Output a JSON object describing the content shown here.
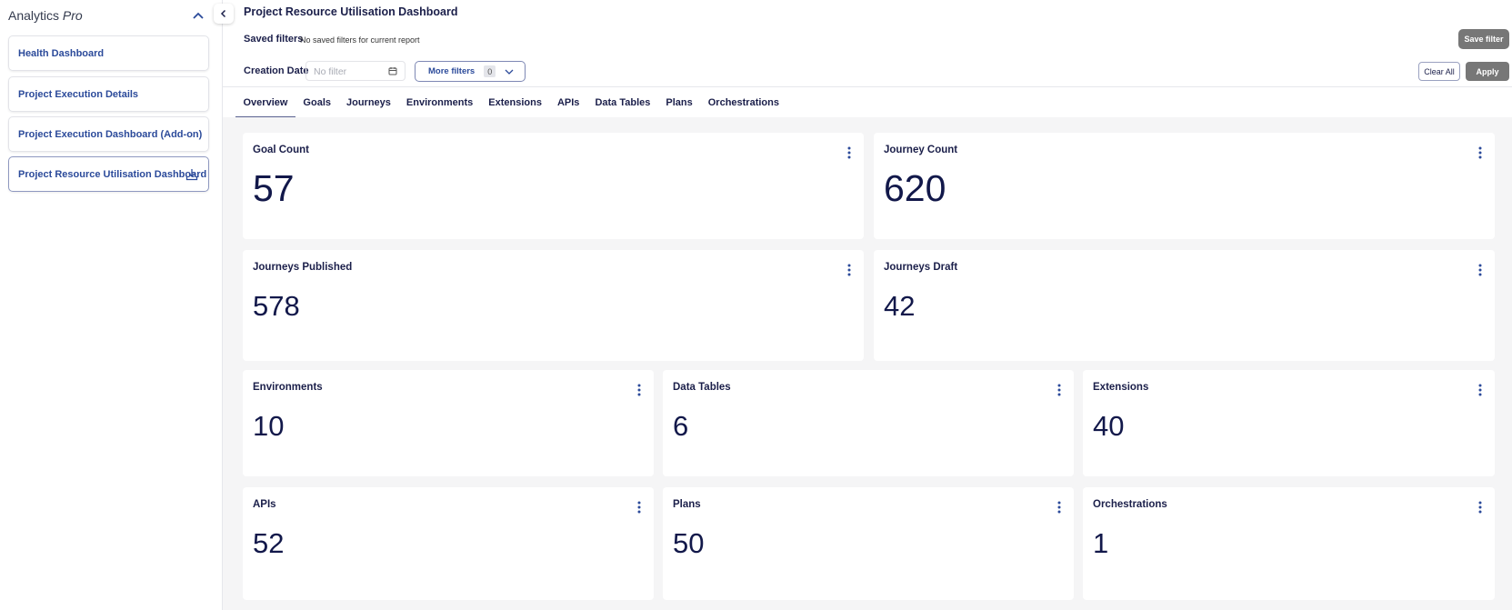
{
  "sidebar": {
    "brand": "Analytics",
    "brand_suffix": "Pro",
    "items": [
      {
        "label": "Health Dashboard"
      },
      {
        "label": "Project Execution Details"
      },
      {
        "label": "Project Execution Dashboard (Add-on)"
      },
      {
        "label": "Project Resource Utilisation Dashboard",
        "active": true
      }
    ]
  },
  "header": {
    "title": "Project Resource Utilisation Dashboard",
    "saved_filters_label": "Saved filters",
    "saved_filters_value": "No saved filters for current report",
    "save_filter_button": "Save filter",
    "creation_date_label": "Creation Date",
    "creation_date_placeholder": "No filter",
    "more_filters_label": "More filters",
    "more_filters_count": "0",
    "clear_all_button": "Clear All",
    "apply_button": "Apply"
  },
  "tabs": [
    "Overview",
    "Goals",
    "Journeys",
    "Environments",
    "Extensions",
    "APIs",
    "Data Tables",
    "Plans",
    "Orchestrations"
  ],
  "active_tab": "Overview",
  "cards": [
    {
      "title": "Goal Count",
      "value": "57"
    },
    {
      "title": "Journey Count",
      "value": "620"
    },
    {
      "title": "Journeys Published",
      "value": "578"
    },
    {
      "title": "Journeys Draft",
      "value": "42"
    },
    {
      "title": "Environments",
      "value": "10"
    },
    {
      "title": "Data Tables",
      "value": "6"
    },
    {
      "title": "Extensions",
      "value": "40"
    },
    {
      "title": "APIs",
      "value": "52"
    },
    {
      "title": "Plans",
      "value": "50"
    },
    {
      "title": "Orchestrations",
      "value": "1"
    }
  ],
  "colors": {
    "accent": "#2b4a9a",
    "text": "#1b1f4a",
    "button_gray": "#777777",
    "content_bg": "#f5f5f6"
  }
}
